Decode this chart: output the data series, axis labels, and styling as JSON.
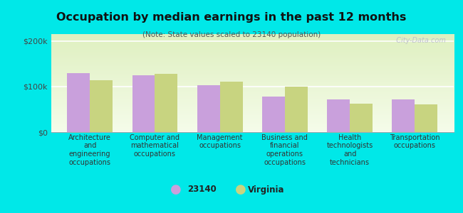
{
  "title": "Occupation by median earnings in the past 12 months",
  "subtitle": "(Note: State values scaled to 23140 population)",
  "categories": [
    "Architecture\nand\nengineering\noccupations",
    "Computer and\nmathematical\noccupations",
    "Management\noccupations",
    "Business and\nfinancial\noperations\noccupations",
    "Health\ntechnologists\nand\ntechnicians",
    "Transportation\noccupations"
  ],
  "values_23140": [
    130000,
    125000,
    103000,
    78000,
    72000,
    71000
  ],
  "values_virginia": [
    113000,
    128000,
    110000,
    100000,
    63000,
    61000
  ],
  "color_23140": "#c9a0dc",
  "color_virginia": "#c8d480",
  "background_color": "#00e8e8",
  "yticks": [
    0,
    100000,
    200000
  ],
  "ytick_labels": [
    "$0",
    "$100k",
    "$200k"
  ],
  "ylim": [
    0,
    215000
  ],
  "legend_label_23140": "23140",
  "legend_label_virginia": "Virginia",
  "watermark": "  City-Data.com"
}
